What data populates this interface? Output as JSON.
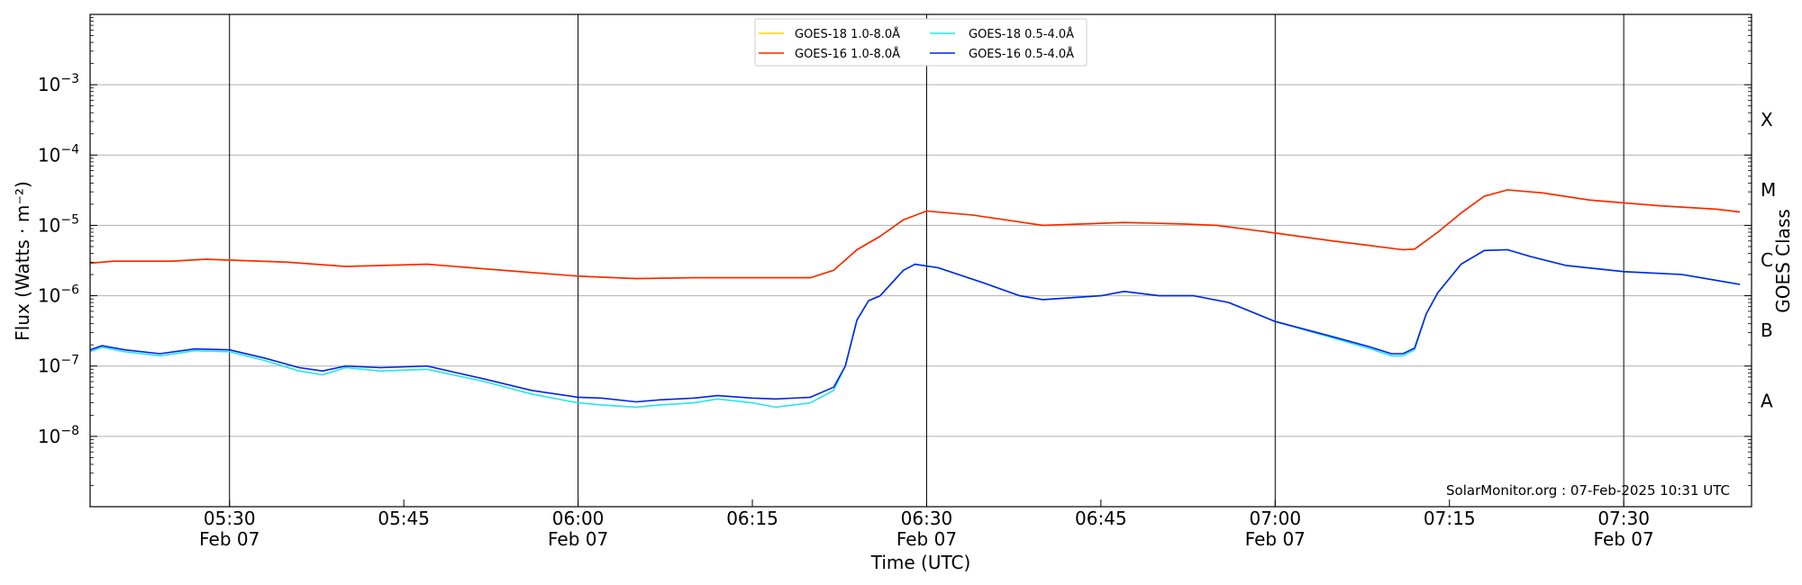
{
  "chart_data": {
    "type": "line",
    "title": "",
    "xlabel": "Time (UTC)",
    "ylabel": "Flux (Watts · m⁻²)",
    "ylabel_right": "GOES Class",
    "y_scale": "log",
    "ylim": [
      1e-09,
      0.01
    ],
    "xlim": [
      "05:18",
      "07:41"
    ],
    "grid": "horizontal at each decade; vertical lines at every 30 minutes",
    "legend_position": "top-center",
    "credit": "SolarMonitor.org : 07-Feb-2025 10:31 UTC",
    "y_ticks": [
      {
        "value": 1e-08,
        "exp": "−8"
      },
      {
        "value": 1e-07,
        "exp": "−7"
      },
      {
        "value": 1e-06,
        "exp": "−6"
      },
      {
        "value": 1e-05,
        "exp": "−5"
      },
      {
        "value": 0.0001,
        "exp": "−4"
      },
      {
        "value": 0.001,
        "exp": "−3"
      }
    ],
    "y_tick_base": "10",
    "goes_classes": [
      {
        "label": "A",
        "value": 3.2e-08
      },
      {
        "label": "B",
        "value": 3.2e-07
      },
      {
        "label": "C",
        "value": 3.2e-06
      },
      {
        "label": "M",
        "value": 3.2e-05
      },
      {
        "label": "X",
        "value": 0.00032
      }
    ],
    "x_ticks": [
      {
        "time": "05:30",
        "date": "Feb 07"
      },
      {
        "time": "05:45",
        "date": ""
      },
      {
        "time": "06:00",
        "date": "Feb 07"
      },
      {
        "time": "06:15",
        "date": ""
      },
      {
        "time": "06:30",
        "date": "Feb 07"
      },
      {
        "time": "06:45",
        "date": ""
      },
      {
        "time": "07:00",
        "date": "Feb 07"
      },
      {
        "time": "07:15",
        "date": ""
      },
      {
        "time": "07:30",
        "date": "Feb 07"
      }
    ],
    "x_vlines": [
      "05:30",
      "06:00",
      "06:30",
      "07:00",
      "07:30"
    ],
    "series": [
      {
        "name": "GOES-18 1.0-8.0Å",
        "color": "#ffd400",
        "points": [
          [
            "05:18",
            2.9e-06
          ],
          [
            "05:20",
            3.1e-06
          ],
          [
            "05:25",
            3.1e-06
          ],
          [
            "05:28",
            3.3e-06
          ],
          [
            "05:35",
            3e-06
          ],
          [
            "05:40",
            2.6e-06
          ],
          [
            "05:47",
            2.8e-06
          ],
          [
            "05:55",
            2.2e-06
          ],
          [
            "06:00",
            1.9e-06
          ],
          [
            "06:05",
            1.75e-06
          ],
          [
            "06:10",
            1.8e-06
          ],
          [
            "06:20",
            1.8e-06
          ],
          [
            "06:22",
            2.3e-06
          ],
          [
            "06:24",
            4.5e-06
          ],
          [
            "06:26",
            7e-06
          ],
          [
            "06:28",
            1.2e-05
          ],
          [
            "06:30",
            1.6e-05
          ],
          [
            "06:34",
            1.4e-05
          ],
          [
            "06:40",
            1e-05
          ],
          [
            "06:47",
            1.1e-05
          ],
          [
            "06:52",
            1.05e-05
          ],
          [
            "06:55",
            1e-05
          ],
          [
            "07:00",
            7.8e-06
          ],
          [
            "07:05",
            6e-06
          ],
          [
            "07:08",
            5.2e-06
          ],
          [
            "07:11",
            4.5e-06
          ],
          [
            "07:12",
            4.6e-06
          ],
          [
            "07:14",
            8e-06
          ],
          [
            "07:16",
            1.5e-05
          ],
          [
            "07:18",
            2.6e-05
          ],
          [
            "07:20",
            3.2e-05
          ],
          [
            "07:23",
            2.9e-05
          ],
          [
            "07:27",
            2.3e-05
          ],
          [
            "07:33",
            1.9e-05
          ],
          [
            "07:38",
            1.7e-05
          ],
          [
            "07:40",
            1.55e-05
          ]
        ]
      },
      {
        "name": "GOES-16 1.0-8.0Å",
        "color": "#ff2200",
        "points": [
          [
            "05:18",
            2.9e-06
          ],
          [
            "05:20",
            3.1e-06
          ],
          [
            "05:25",
            3.1e-06
          ],
          [
            "05:28",
            3.3e-06
          ],
          [
            "05:35",
            3e-06
          ],
          [
            "05:40",
            2.6e-06
          ],
          [
            "05:47",
            2.8e-06
          ],
          [
            "05:55",
            2.2e-06
          ],
          [
            "06:00",
            1.9e-06
          ],
          [
            "06:05",
            1.75e-06
          ],
          [
            "06:10",
            1.8e-06
          ],
          [
            "06:20",
            1.8e-06
          ],
          [
            "06:22",
            2.3e-06
          ],
          [
            "06:24",
            4.5e-06
          ],
          [
            "06:26",
            7e-06
          ],
          [
            "06:28",
            1.2e-05
          ],
          [
            "06:30",
            1.6e-05
          ],
          [
            "06:34",
            1.4e-05
          ],
          [
            "06:40",
            1e-05
          ],
          [
            "06:47",
            1.1e-05
          ],
          [
            "06:52",
            1.05e-05
          ],
          [
            "06:55",
            1e-05
          ],
          [
            "07:00",
            7.8e-06
          ],
          [
            "07:05",
            6e-06
          ],
          [
            "07:08",
            5.2e-06
          ],
          [
            "07:11",
            4.5e-06
          ],
          [
            "07:12",
            4.6e-06
          ],
          [
            "07:14",
            8e-06
          ],
          [
            "07:16",
            1.5e-05
          ],
          [
            "07:18",
            2.6e-05
          ],
          [
            "07:20",
            3.2e-05
          ],
          [
            "07:23",
            2.9e-05
          ],
          [
            "07:27",
            2.3e-05
          ],
          [
            "07:33",
            1.9e-05
          ],
          [
            "07:38",
            1.7e-05
          ],
          [
            "07:40",
            1.55e-05
          ]
        ]
      },
      {
        "name": "GOES-18 0.5-4.0Å",
        "color": "#22e5ee",
        "points": [
          [
            "05:18",
            1.6e-07
          ],
          [
            "05:19",
            1.85e-07
          ],
          [
            "05:21",
            1.6e-07
          ],
          [
            "05:24",
            1.4e-07
          ],
          [
            "05:27",
            1.65e-07
          ],
          [
            "05:30",
            1.6e-07
          ],
          [
            "05:33",
            1.2e-07
          ],
          [
            "05:36",
            8.5e-08
          ],
          [
            "05:38",
            7.5e-08
          ],
          [
            "05:40",
            9.5e-08
          ],
          [
            "05:43",
            8.5e-08
          ],
          [
            "05:47",
            9e-08
          ],
          [
            "05:52",
            6e-08
          ],
          [
            "05:56",
            4e-08
          ],
          [
            "06:00",
            3e-08
          ],
          [
            "06:02",
            2.8e-08
          ],
          [
            "06:05",
            2.6e-08
          ],
          [
            "06:07",
            2.8e-08
          ],
          [
            "06:10",
            3e-08
          ],
          [
            "06:12",
            3.4e-08
          ],
          [
            "06:15",
            3e-08
          ],
          [
            "06:17",
            2.6e-08
          ],
          [
            "06:20",
            3e-08
          ],
          [
            "06:22",
            4.5e-08
          ],
          [
            "06:23",
            1e-07
          ],
          [
            "06:24",
            4.5e-07
          ],
          [
            "06:25",
            8.5e-07
          ],
          [
            "06:26",
            1e-06
          ],
          [
            "06:28",
            2.3e-06
          ],
          [
            "06:29",
            2.8e-06
          ],
          [
            "06:31",
            2.5e-06
          ],
          [
            "06:35",
            1.5e-06
          ],
          [
            "06:38",
            1e-06
          ],
          [
            "06:40",
            8.8e-07
          ],
          [
            "06:45",
            1e-06
          ],
          [
            "06:47",
            1.15e-06
          ],
          [
            "06:50",
            1e-06
          ],
          [
            "06:53",
            1e-06
          ],
          [
            "06:56",
            8e-07
          ],
          [
            "07:00",
            4.3e-07
          ],
          [
            "07:05",
            2.5e-07
          ],
          [
            "07:08",
            1.8e-07
          ],
          [
            "07:10",
            1.4e-07
          ],
          [
            "07:11",
            1.4e-07
          ],
          [
            "07:12",
            1.7e-07
          ],
          [
            "07:13",
            5.5e-07
          ],
          [
            "07:14",
            1.1e-06
          ],
          [
            "07:16",
            2.8e-06
          ],
          [
            "07:18",
            4.4e-06
          ],
          [
            "07:20",
            4.5e-06
          ],
          [
            "07:22",
            3.6e-06
          ],
          [
            "07:25",
            2.7e-06
          ],
          [
            "07:30",
            2.2e-06
          ],
          [
            "07:35",
            2e-06
          ],
          [
            "07:40",
            1.45e-06
          ]
        ]
      },
      {
        "name": "GOES-16 0.5-4.0Å",
        "color": "#0022ee",
        "points": [
          [
            "05:18",
            1.7e-07
          ],
          [
            "05:19",
            1.95e-07
          ],
          [
            "05:21",
            1.7e-07
          ],
          [
            "05:24",
            1.5e-07
          ],
          [
            "05:27",
            1.75e-07
          ],
          [
            "05:30",
            1.7e-07
          ],
          [
            "05:33",
            1.3e-07
          ],
          [
            "05:36",
            9.5e-08
          ],
          [
            "05:38",
            8.5e-08
          ],
          [
            "05:40",
            1e-07
          ],
          [
            "05:43",
            9.5e-08
          ],
          [
            "05:47",
            1e-07
          ],
          [
            "05:52",
            6.5e-08
          ],
          [
            "05:56",
            4.5e-08
          ],
          [
            "06:00",
            3.6e-08
          ],
          [
            "06:02",
            3.5e-08
          ],
          [
            "06:05",
            3.1e-08
          ],
          [
            "06:07",
            3.3e-08
          ],
          [
            "06:10",
            3.5e-08
          ],
          [
            "06:12",
            3.8e-08
          ],
          [
            "06:15",
            3.5e-08
          ],
          [
            "06:17",
            3.4e-08
          ],
          [
            "06:20",
            3.6e-08
          ],
          [
            "06:22",
            5e-08
          ],
          [
            "06:23",
            1e-07
          ],
          [
            "06:24",
            4.5e-07
          ],
          [
            "06:25",
            8.5e-07
          ],
          [
            "06:26",
            1e-06
          ],
          [
            "06:28",
            2.3e-06
          ],
          [
            "06:29",
            2.8e-06
          ],
          [
            "06:31",
            2.5e-06
          ],
          [
            "06:35",
            1.5e-06
          ],
          [
            "06:38",
            1e-06
          ],
          [
            "06:40",
            8.8e-07
          ],
          [
            "06:45",
            1e-06
          ],
          [
            "06:47",
            1.15e-06
          ],
          [
            "06:50",
            1e-06
          ],
          [
            "06:53",
            1e-06
          ],
          [
            "06:56",
            8e-07
          ],
          [
            "07:00",
            4.3e-07
          ],
          [
            "07:05",
            2.6e-07
          ],
          [
            "07:08",
            1.9e-07
          ],
          [
            "07:10",
            1.5e-07
          ],
          [
            "07:11",
            1.5e-07
          ],
          [
            "07:12",
            1.8e-07
          ],
          [
            "07:13",
            5.5e-07
          ],
          [
            "07:14",
            1.1e-06
          ],
          [
            "07:16",
            2.8e-06
          ],
          [
            "07:18",
            4.4e-06
          ],
          [
            "07:20",
            4.5e-06
          ],
          [
            "07:22",
            3.6e-06
          ],
          [
            "07:25",
            2.7e-06
          ],
          [
            "07:30",
            2.2e-06
          ],
          [
            "07:35",
            2e-06
          ],
          [
            "07:40",
            1.45e-06
          ]
        ]
      }
    ]
  }
}
